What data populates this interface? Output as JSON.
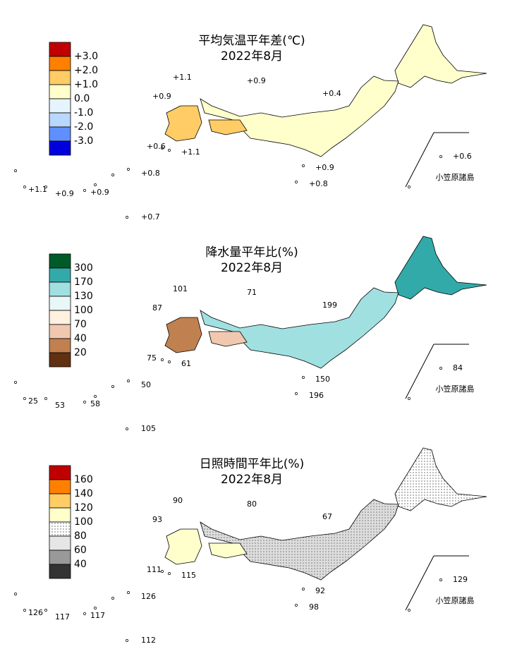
{
  "panels": [
    {
      "title": "平均気温平年差(℃)",
      "subtitle": "2022年8月",
      "legend": [
        "+3.0",
        "+2.0",
        "+1.0",
        "0.0",
        "-1.0",
        "-2.0",
        "-3.0"
      ],
      "inset_label": "小笠原諸島",
      "labels": [
        "+1.1",
        "+0.9",
        "+0.9",
        "+0.4",
        "+0.6",
        "+1.1",
        "+0.6",
        "+0.9",
        "+0.8",
        "+1.1",
        "+0.9",
        "+0.9",
        "+0.8",
        "+0.7"
      ]
    },
    {
      "title": "降水量平年比(%)",
      "subtitle": "2022年8月",
      "legend": [
        "300",
        "170",
        "130",
        "100",
        "70",
        "40",
        "20"
      ],
      "inset_label": "小笠原諸島",
      "labels": [
        "101",
        "71",
        "87",
        "199",
        "75",
        "61",
        "84",
        "150",
        "50",
        "25",
        "53",
        "58",
        "196",
        "105"
      ]
    },
    {
      "title": "日照時間平年比(%)",
      "subtitle": "2022年8月",
      "legend": [
        "160",
        "140",
        "120",
        "100",
        "80",
        "60",
        "40"
      ],
      "inset_label": "小笠原諸島",
      "labels": [
        "90",
        "80",
        "93",
        "67",
        "111",
        "115",
        "129",
        "92",
        "126",
        "126",
        "117",
        "117",
        "98",
        "112"
      ]
    }
  ]
}
